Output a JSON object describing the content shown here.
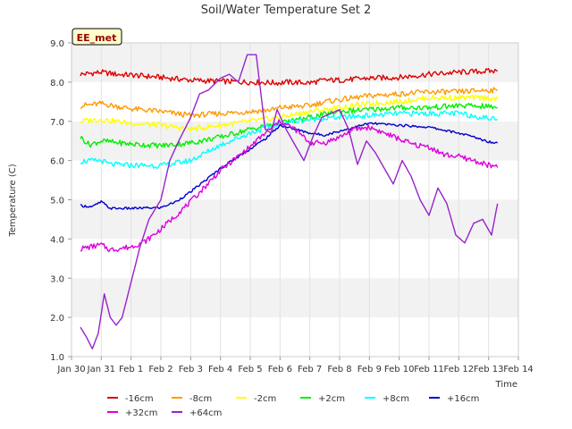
{
  "chart_data": {
    "type": "line",
    "title": "Soil/Water Temperature Set 2",
    "xlabel": "Time",
    "ylabel": "Temperature (C)",
    "ylim": [
      1.0,
      9.0
    ],
    "xlim_days": [
      0,
      15
    ],
    "x_ticks": [
      {
        "label": "Jan 30",
        "day": 0
      },
      {
        "label": "Jan 31",
        "day": 1
      },
      {
        "label": "Feb 1",
        "day": 2
      },
      {
        "label": "Feb 2",
        "day": 3
      },
      {
        "label": "Feb 3",
        "day": 4
      },
      {
        "label": "Feb 4",
        "day": 5
      },
      {
        "label": "Feb 5",
        "day": 6
      },
      {
        "label": "Feb 6",
        "day": 7
      },
      {
        "label": "Feb 7",
        "day": 8
      },
      {
        "label": "Feb 8",
        "day": 9
      },
      {
        "label": "Feb 9",
        "day": 10
      },
      {
        "label": "Feb 10",
        "day": 11
      },
      {
        "label": "Feb 11",
        "day": 12
      },
      {
        "label": "Feb 12",
        "day": 13
      },
      {
        "label": "Feb 13",
        "day": 14
      },
      {
        "label": "Feb 14",
        "day": 15
      }
    ],
    "y_ticks": [
      "1.0",
      "2.0",
      "3.0",
      "4.0",
      "5.0",
      "6.0",
      "7.0",
      "8.0",
      "9.0"
    ],
    "grid": true,
    "legend_position": "bottom",
    "annotation": "EE_met",
    "series": [
      {
        "name": "-16cm",
        "color": "#dd0000",
        "x": [
          0.3,
          1,
          1.5,
          2,
          3,
          4,
          5,
          6,
          7,
          7.2,
          8,
          8.5,
          9,
          10,
          11,
          12,
          13,
          14,
          14.3
        ],
        "y": [
          8.2,
          8.25,
          8.2,
          8.18,
          8.12,
          8.05,
          8.02,
          8.0,
          7.98,
          8.0,
          7.98,
          8.05,
          8.05,
          8.1,
          8.12,
          8.2,
          8.25,
          8.28,
          8.28
        ]
      },
      {
        "name": "-8cm",
        "color": "#ff9900",
        "x": [
          0.3,
          1,
          2,
          3,
          4,
          5,
          6,
          6.8,
          7,
          8,
          8.5,
          9,
          10,
          11,
          12,
          13,
          14,
          14.3
        ],
        "y": [
          7.4,
          7.45,
          7.32,
          7.25,
          7.15,
          7.2,
          7.25,
          7.3,
          7.35,
          7.4,
          7.5,
          7.55,
          7.65,
          7.7,
          7.75,
          7.75,
          7.8,
          7.78
        ]
      },
      {
        "name": "-2cm",
        "color": "#ffff00",
        "x": [
          0.3,
          1,
          2,
          3,
          4,
          5,
          6,
          7,
          8,
          9,
          10,
          11,
          12,
          13,
          14,
          14.3
        ],
        "y": [
          7.0,
          7.05,
          6.95,
          6.9,
          6.8,
          6.9,
          7.0,
          7.1,
          7.25,
          7.35,
          7.45,
          7.5,
          7.6,
          7.6,
          7.6,
          7.55
        ]
      },
      {
        "name": "+2cm",
        "color": "#00ee00",
        "x": [
          0.3,
          0.6,
          1,
          2,
          3,
          4,
          5,
          6,
          7,
          8,
          9,
          10,
          11,
          12,
          13,
          14,
          14.3
        ],
        "y": [
          6.6,
          6.4,
          6.5,
          6.42,
          6.38,
          6.45,
          6.6,
          6.8,
          6.95,
          7.1,
          7.25,
          7.3,
          7.35,
          7.35,
          7.4,
          7.38,
          7.35
        ]
      },
      {
        "name": "+8cm",
        "color": "#00ffff",
        "x": [
          0.3,
          1,
          1.3,
          2,
          3,
          4,
          5,
          6,
          7,
          8,
          9,
          10,
          11,
          12,
          13,
          14,
          14.3
        ],
        "y": [
          5.98,
          6.0,
          5.9,
          5.88,
          5.87,
          6.0,
          6.4,
          6.7,
          6.95,
          7.05,
          7.1,
          7.15,
          7.2,
          7.2,
          7.2,
          7.08,
          7.05
        ]
      },
      {
        "name": "+16cm",
        "color": "#0000cc",
        "x": [
          0.3,
          0.7,
          1,
          1.3,
          2,
          3,
          3.5,
          4,
          4.5,
          5,
          5.5,
          6,
          6.5,
          7,
          8,
          8.5,
          9,
          10,
          11,
          12,
          13,
          13.5,
          14,
          14.3
        ],
        "y": [
          4.85,
          4.82,
          4.95,
          4.78,
          4.78,
          4.8,
          4.95,
          5.2,
          5.5,
          5.8,
          6.05,
          6.3,
          6.55,
          6.9,
          6.7,
          6.65,
          6.75,
          6.95,
          6.9,
          6.85,
          6.7,
          6.6,
          6.48,
          6.45
        ]
      },
      {
        "name": "+32cm",
        "color": "#dd00dd",
        "x": [
          0.3,
          1,
          1.3,
          2,
          2.5,
          3,
          3.5,
          4,
          4.5,
          5,
          5.5,
          6,
          6.5,
          7,
          7.5,
          8,
          8.5,
          9,
          9.5,
          10,
          10.5,
          11,
          11.5,
          12,
          12.5,
          13,
          13.5,
          14,
          14.3
        ],
        "y": [
          3.75,
          3.85,
          3.72,
          3.8,
          3.95,
          4.25,
          4.6,
          4.95,
          5.35,
          5.75,
          6.05,
          6.35,
          6.7,
          7.0,
          6.8,
          6.45,
          6.45,
          6.6,
          6.8,
          6.85,
          6.7,
          6.55,
          6.4,
          6.35,
          6.15,
          6.1,
          6.0,
          5.88,
          5.82
        ]
      },
      {
        "name": "+64cm",
        "color": "#9922cc",
        "x": [
          0.3,
          0.5,
          0.7,
          0.9,
          1.1,
          1.3,
          1.5,
          1.7,
          2,
          2.3,
          2.6,
          3,
          3.3,
          3.6,
          4,
          4.3,
          4.6,
          5,
          5.3,
          5.6,
          5.9,
          6.2,
          6.5,
          6.7,
          6.9,
          7.2,
          7.5,
          7.8,
          8.1,
          8.4,
          8.7,
          9,
          9.3,
          9.6,
          9.9,
          10.2,
          10.5,
          10.8,
          11.1,
          11.4,
          11.7,
          12,
          12.3,
          12.6,
          12.9,
          13.2,
          13.5,
          13.8,
          14.1,
          14.3
        ],
        "y": [
          1.75,
          1.5,
          1.2,
          1.6,
          2.6,
          2.0,
          1.8,
          2.0,
          2.9,
          3.8,
          4.5,
          5.0,
          6.0,
          6.5,
          7.1,
          7.7,
          7.8,
          8.1,
          8.2,
          8.0,
          8.7,
          8.7,
          6.8,
          6.7,
          7.3,
          6.8,
          6.4,
          6.0,
          6.6,
          7.1,
          7.2,
          7.3,
          6.8,
          5.9,
          6.5,
          6.2,
          5.8,
          5.4,
          6.0,
          5.6,
          5.0,
          4.6,
          5.3,
          4.9,
          4.1,
          3.9,
          4.4,
          4.5,
          4.1,
          4.9
        ]
      }
    ]
  }
}
